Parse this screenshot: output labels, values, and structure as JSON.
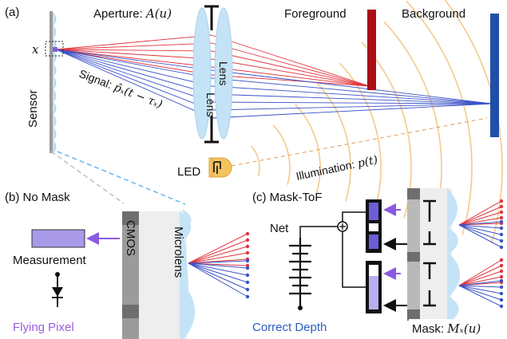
{
  "panel_a": {
    "label": "(a)",
    "aperture_label": "Aperture: ",
    "aperture_math": "A(u)",
    "foreground_label": "Foreground",
    "background_label": "Background",
    "pixel_label": "x",
    "sensor_label": "Sensor",
    "lens_left_label": "Lens",
    "lens_right_label": "Lens",
    "signal_label": "Signal: ",
    "signal_math": "p̂ₓ(t − τₓ)",
    "led_label": "LED",
    "illumination_label": "Illumination: ",
    "illumination_math": "p(t)"
  },
  "panel_b": {
    "label": "(b) No Mask",
    "measurement_label": "Measurement",
    "cmos_label": "CMOS",
    "microlens_label": "Microlens",
    "result_label": "Flying Pixel"
  },
  "panel_c": {
    "label": "(c) Mask-ToF",
    "net_label": "Net",
    "result_label": "Correct Depth",
    "mask_label": "Mask: ",
    "mask_math": "Mₓ(u)"
  },
  "colors": {
    "red_rays": "#e0333c",
    "blue_rays": "#3b53c9",
    "foreground_bar": "#a80f17",
    "background_bar": "#1f4fa8",
    "lens_fill": "#c5e3f6",
    "measurement_box": "#a89ae8",
    "flying_pixel_text": "#9a5ce0",
    "correct_depth_text": "#2a5fc2",
    "illumination_waves": "#f6c98e",
    "dashed_link": "#67b6ea"
  }
}
